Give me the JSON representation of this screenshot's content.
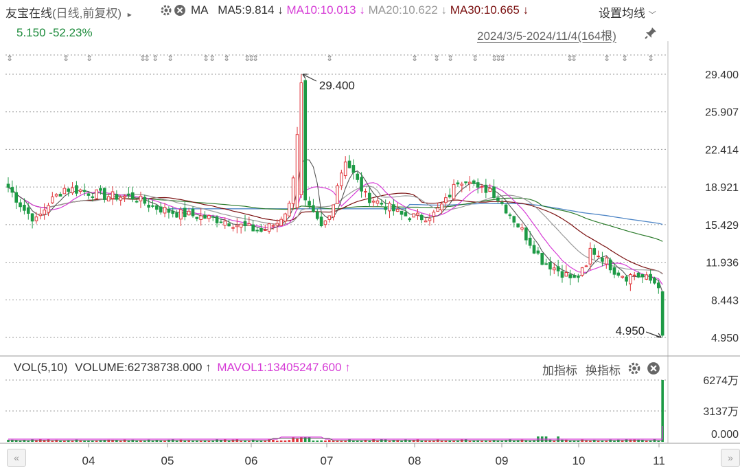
{
  "header": {
    "title": "友宝在线",
    "mode": "(日线,前复权)",
    "arrow": "▸",
    "ma_label": "MA",
    "ma5": "MA5:9.814",
    "ma10": "MA10:10.013",
    "ma20": "MA20:10.622",
    "ma30": "MA30:10.665",
    "arrow_down": "↓",
    "settings": "设置均线",
    "price": "5.150",
    "change": "-52.23%",
    "range": "2024/3/5-2024/11/4(164根)"
  },
  "volume_header": {
    "vol": "VOL(5,10)",
    "volume": "VOLUME:62738738.000",
    "mavol": "MAVOL1:13405247.600",
    "arrow_up": "↑",
    "add_indicator": "加指标",
    "switch_indicator": "换指标"
  },
  "colors": {
    "up": "#e0353a",
    "down": "#1d9a45",
    "ma5": "#555555",
    "ma10": "#d63cd6",
    "ma20": "#999999",
    "ma30": "#7a1010",
    "ma60": "#2a7a2a",
    "ma120": "#4f86c6",
    "grid": "#9a9a9a"
  },
  "chart_data": {
    "type": "candlestick",
    "y_axis": {
      "ticks": [
        "29.400",
        "25.907",
        "22.414",
        "18.921",
        "15.429",
        "11.936",
        "8.443",
        "4.950"
      ],
      "min": 4.95,
      "max": 29.4
    },
    "x_axis": {
      "ticks": [
        "04",
        "05",
        "06",
        "07",
        "08",
        "09",
        "10",
        "11"
      ]
    },
    "annotations": [
      {
        "label": "29.400",
        "value": 29.4,
        "kind": "high"
      },
      {
        "label": "4.950",
        "value": 4.95,
        "kind": "low"
      }
    ],
    "candles_sample": [
      {
        "o": 17.5,
        "h": 18.9,
        "l": 16.9,
        "c": 18.6
      },
      {
        "o": 18.6,
        "h": 19.3,
        "l": 17.8,
        "c": 18.3
      },
      {
        "o": 18.3,
        "h": 18.8,
        "l": 16.4,
        "c": 16.8
      },
      {
        "o": 16.8,
        "h": 17.4,
        "l": 15.9,
        "c": 16.1
      },
      {
        "o": 16.1,
        "h": 17.2,
        "l": 15.2,
        "c": 16.9
      },
      {
        "o": 16.9,
        "h": 18.1,
        "l": 16.5,
        "c": 17.8
      },
      {
        "o": 17.8,
        "h": 19.9,
        "l": 17.3,
        "c": 19.5
      },
      {
        "o": 19.5,
        "h": 20.3,
        "l": 18.7,
        "c": 19.1
      },
      {
        "o": 19.1,
        "h": 19.6,
        "l": 17.9,
        "c": 18.2
      },
      {
        "o": 18.2,
        "h": 18.8,
        "l": 17.4,
        "c": 17.7
      }
    ],
    "volume": {
      "ticks": [
        "6274万",
        "3137万",
        "0.000"
      ],
      "max": 62738738
    }
  }
}
